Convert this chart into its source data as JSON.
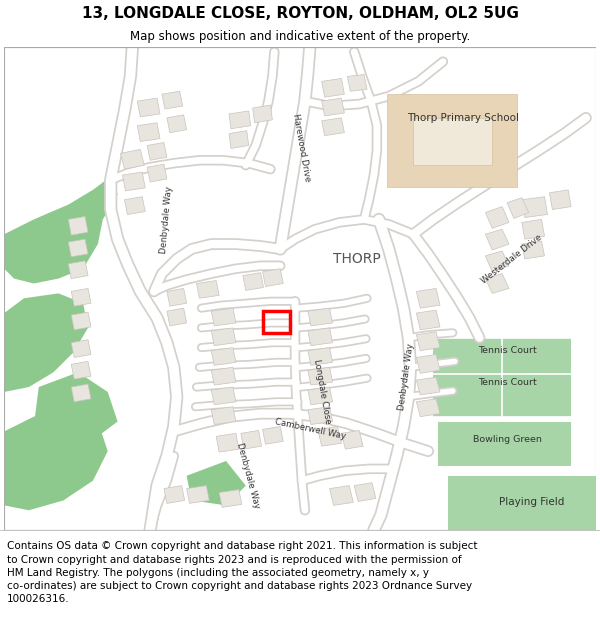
{
  "title": "13, LONGDALE CLOSE, ROYTON, OLDHAM, OL2 5UG",
  "subtitle": "Map shows position and indicative extent of the property.",
  "footer": "Contains OS data © Crown copyright and database right 2021. This information is subject\nto Crown copyright and database rights 2023 and is reproduced with the permission of\nHM Land Registry. The polygons (including the associated geometry, namely x, y\nco-ordinates) are subject to Crown copyright and database rights 2023 Ordnance Survey\n100026316.",
  "map_bg": "#ffffff",
  "road_color": "#ffffff",
  "road_casing_color": "#d4d0cb",
  "building_color": "#e8e4de",
  "building_edge_color": "#c8c4be",
  "green_color": "#8dc98d",
  "green_edge_color": "#7ab87a",
  "school_color": "#e8d5b8",
  "school_edge_color": "#d4c0a0",
  "highlight_color": "#ff0000",
  "water_color": "#b8d8f0",
  "label_color": "#333333",
  "title_fontsize": 11,
  "subtitle_fontsize": 8.5,
  "footer_fontsize": 7.5
}
